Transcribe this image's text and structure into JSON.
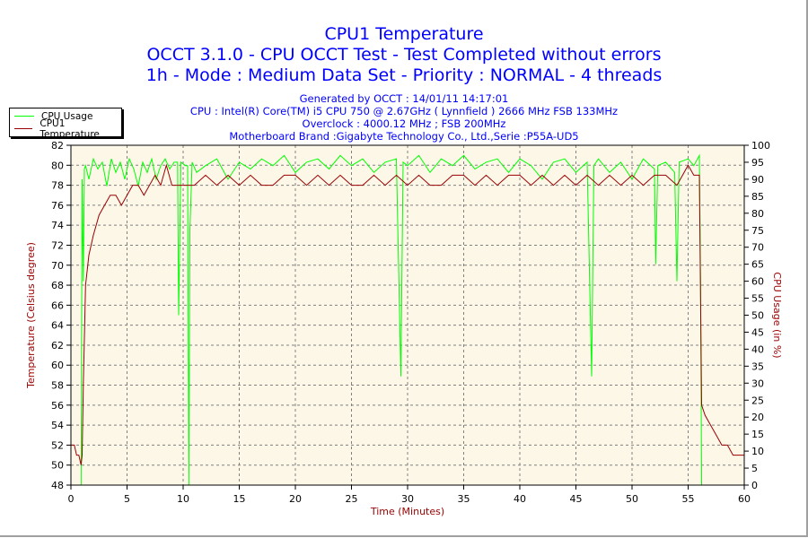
{
  "header": {
    "title": "CPU1 Temperature",
    "subtitle1": "OCCT 3.1.0 - CPU OCCT Test - Test Completed without errors",
    "subtitle2": "1h - Mode : Medium Data Set - Priority : NORMAL - 4 threads",
    "info": [
      "Generated by OCCT : 14/01/11 14:17:01",
      "CPU : Intel(R) Core(TM) i5 CPU 750 @ 2.67GHz ( Lynnfield ) 2666 MHz FSB 133MHz",
      "Overclock : 4000.12 MHz ; FSB 200MHz",
      "Motherboard Brand :Gigabyte Technology Co., Ltd.,Serie :P55A-UD5"
    ]
  },
  "chart_data": {
    "type": "line",
    "title": "CPU1 Temperature",
    "xlabel": "Time (Minutes)",
    "ylabel": "Temperature (Celsius degree)",
    "y2label": "CPU Usage (in %)",
    "xlim": [
      0,
      60
    ],
    "ylim": [
      48,
      82
    ],
    "y2lim": [
      0,
      100
    ],
    "xticks": [
      "0",
      "5",
      "10",
      "15",
      "20",
      "25",
      "30",
      "35",
      "40",
      "45",
      "50",
      "55",
      "60"
    ],
    "yticks": [
      "48",
      "50",
      "52",
      "54",
      "56",
      "58",
      "60",
      "62",
      "64",
      "66",
      "68",
      "70",
      "72",
      "74",
      "76",
      "78",
      "80",
      "82"
    ],
    "y2ticks": [
      "0",
      "5",
      "10",
      "15",
      "20",
      "25",
      "30",
      "35",
      "40",
      "45",
      "50",
      "55",
      "60",
      "65",
      "70",
      "75",
      "80",
      "85",
      "90",
      "95",
      "100"
    ],
    "grid": true,
    "legend_position": "top-left",
    "series": [
      {
        "name": "CPU Usage",
        "axis": "right",
        "color": "#00ff00",
        "x": [
          0,
          0.9,
          1.0,
          1.1,
          1.2,
          1.3,
          1.6,
          2,
          2.4,
          2.8,
          3.2,
          3.6,
          4,
          4.4,
          4.8,
          5.2,
          5.6,
          6,
          6.4,
          6.8,
          7.2,
          7.6,
          8,
          8.4,
          8.8,
          9.2,
          9.5,
          9.6,
          9.8,
          10.2,
          10.4,
          10.5,
          10.6,
          10.8,
          11.2,
          12,
          13,
          14,
          15,
          16,
          17,
          18,
          19,
          20,
          21,
          22,
          23,
          24,
          25,
          26,
          27,
          28,
          29,
          29.4,
          29.6,
          30,
          31,
          32,
          33,
          34,
          35,
          36,
          37,
          38,
          39,
          40,
          41,
          42,
          43,
          44,
          45,
          46,
          46.4,
          46.6,
          47,
          48,
          49,
          50,
          51,
          52,
          52.1,
          52.3,
          53,
          53.8,
          54,
          54.2,
          55,
          55.5,
          56,
          56.1,
          56.2,
          56.4,
          60
        ],
        "values": [
          0,
          0,
          90,
          60,
          93,
          94,
          90,
          96,
          93,
          95,
          88,
          96,
          92,
          95,
          90,
          96,
          93,
          88,
          95,
          92,
          96,
          90,
          94,
          96,
          93,
          95,
          95,
          50,
          95,
          94,
          94,
          0,
          75,
          95,
          92,
          94,
          96,
          90,
          95,
          93,
          96,
          94,
          97,
          92,
          95,
          96,
          93,
          97,
          94,
          96,
          92,
          95,
          96,
          32,
          95,
          94,
          97,
          92,
          96,
          94,
          97,
          93,
          95,
          96,
          92,
          96,
          94,
          90,
          95,
          96,
          92,
          95,
          32,
          94,
          96,
          92,
          95,
          90,
          96,
          93,
          65,
          94,
          95,
          92,
          60,
          95,
          96,
          94,
          97,
          60,
          0,
          0,
          0
        ]
      },
      {
        "name": "CPU1 Temperature",
        "axis": "left",
        "color": "#990000",
        "x": [
          0,
          0.3,
          0.5,
          0.7,
          0.9,
          1.0,
          1.1,
          1.3,
          1.6,
          2,
          2.5,
          3,
          3.5,
          4,
          4.5,
          5,
          5.5,
          6,
          6.5,
          7,
          7.5,
          8,
          8.5,
          9,
          10,
          11,
          12,
          13,
          14,
          15,
          16,
          17,
          18,
          19,
          20,
          21,
          22,
          23,
          24,
          25,
          26,
          27,
          28,
          29,
          30,
          31,
          32,
          33,
          34,
          35,
          36,
          37,
          38,
          39,
          40,
          41,
          42,
          43,
          44,
          45,
          46,
          47,
          48,
          49,
          50,
          51,
          52,
          53,
          54,
          55,
          55.5,
          56,
          56.2,
          56.5,
          57,
          57.5,
          58,
          58.5,
          59,
          59.5,
          60
        ],
        "values": [
          52,
          52,
          51,
          51,
          50,
          51,
          58,
          68,
          71,
          73,
          75,
          76,
          77,
          77,
          76,
          77,
          78,
          78,
          77,
          78,
          79,
          78,
          80,
          78,
          78,
          78,
          79,
          78,
          79,
          78,
          79,
          78,
          78,
          79,
          79,
          78,
          79,
          78,
          79,
          78,
          78,
          79,
          78,
          79,
          78,
          79,
          78,
          78,
          79,
          79,
          78,
          79,
          78,
          79,
          79,
          78,
          79,
          78,
          79,
          78,
          79,
          78,
          79,
          78,
          79,
          78,
          79,
          79,
          78,
          80,
          79,
          79,
          56,
          55,
          54,
          53,
          52,
          52,
          51,
          51,
          51
        ]
      }
    ]
  }
}
